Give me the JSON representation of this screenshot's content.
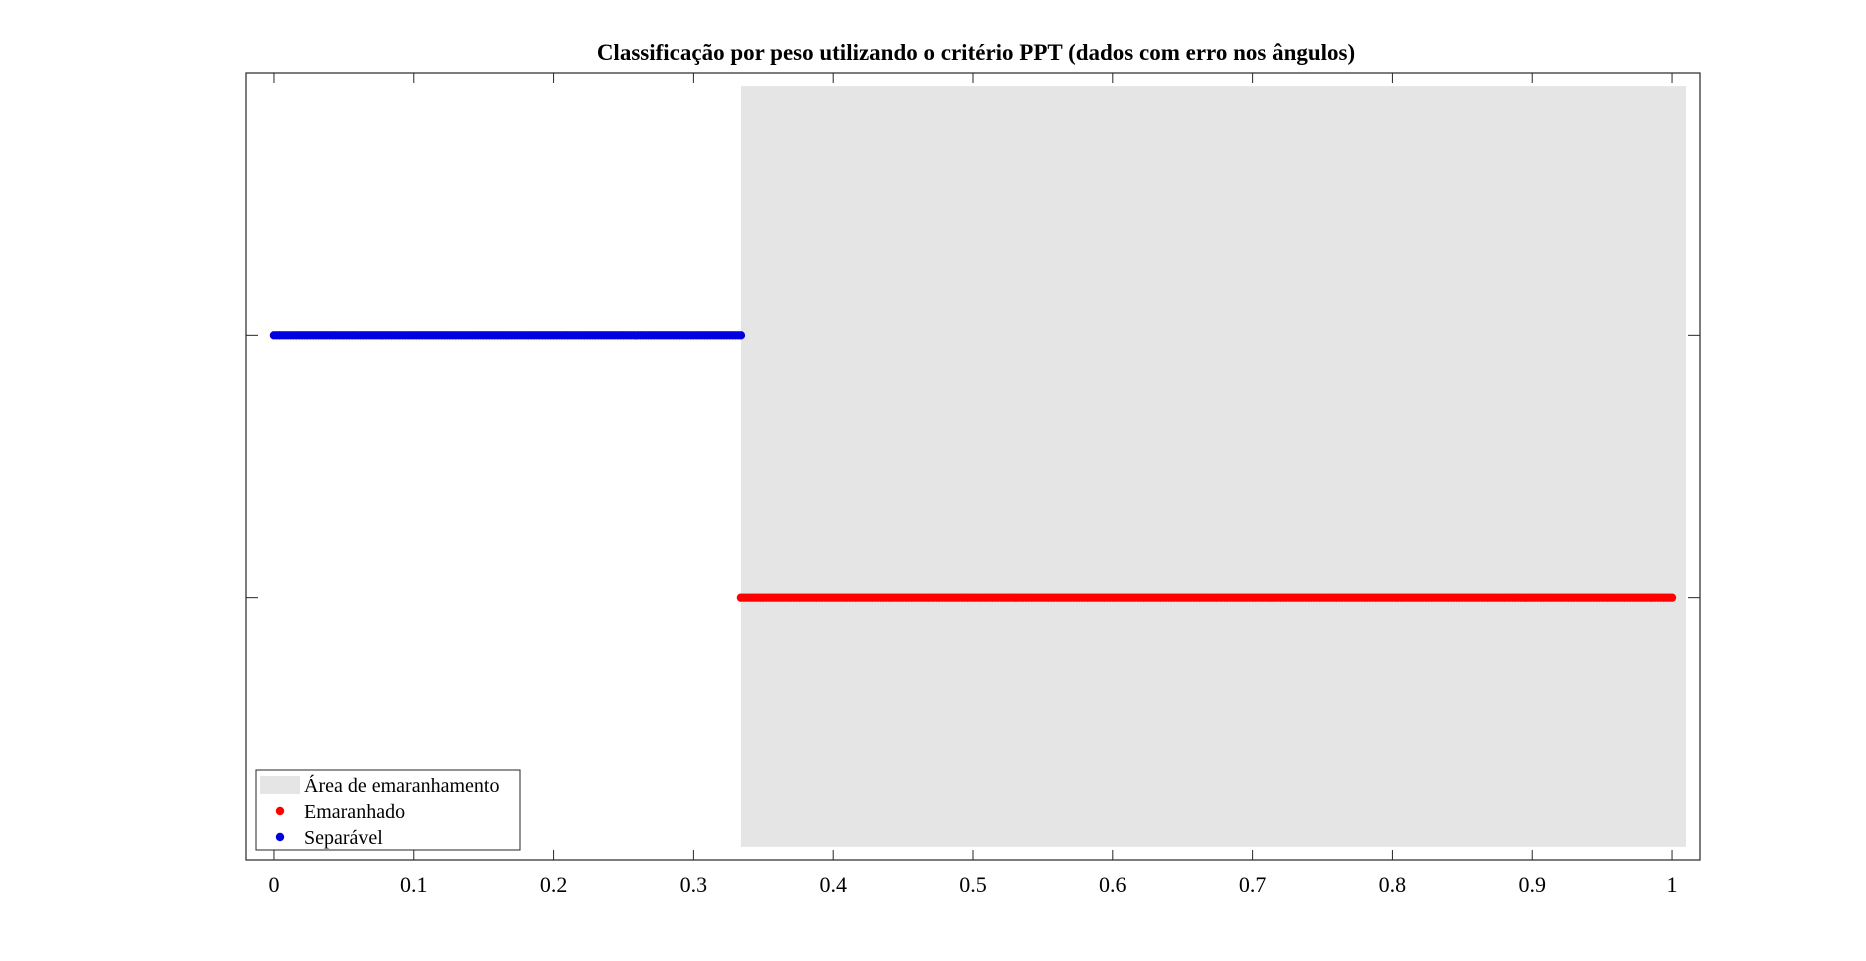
{
  "chart_data": {
    "type": "scatter",
    "title": "Classificação por peso utilizando o critério PPT (dados com erro nos ângulos)",
    "xlabel": "",
    "ylabel": "",
    "xlim": [
      -0.02,
      1.02
    ],
    "ylim": [
      0,
      3
    ],
    "x_ticks": [
      0,
      0.1,
      0.2,
      0.3,
      0.4,
      0.5,
      0.6,
      0.7,
      0.8,
      0.9,
      1
    ],
    "x_tick_labels": [
      "0",
      "0.1",
      "0.2",
      "0.3",
      "0.4",
      "0.5",
      "0.6",
      "0.7",
      "0.8",
      "0.9",
      "1"
    ],
    "y_ticks": [
      1,
      2
    ],
    "y_tick_labels": [
      "",
      ""
    ],
    "grid": false,
    "legend_position": "bottom-left",
    "region": {
      "name": "Área de emaranhamento",
      "x": [
        0.334,
        1.01
      ],
      "y": [
        0.05,
        2.95
      ],
      "color": "#e5e5e5"
    },
    "series": [
      {
        "name": "Emaranhado",
        "color": "#ff0000",
        "y": 1,
        "x_range": [
          0.334,
          1.0
        ],
        "step": 0.002
      },
      {
        "name": "Separável",
        "color": "#0000e0",
        "y": 2,
        "x_range": [
          0.0,
          0.333
        ],
        "step": 0.002
      }
    ],
    "legend_entries": [
      "Área de emaranhamento",
      "Emaranhado",
      "Separável"
    ]
  }
}
